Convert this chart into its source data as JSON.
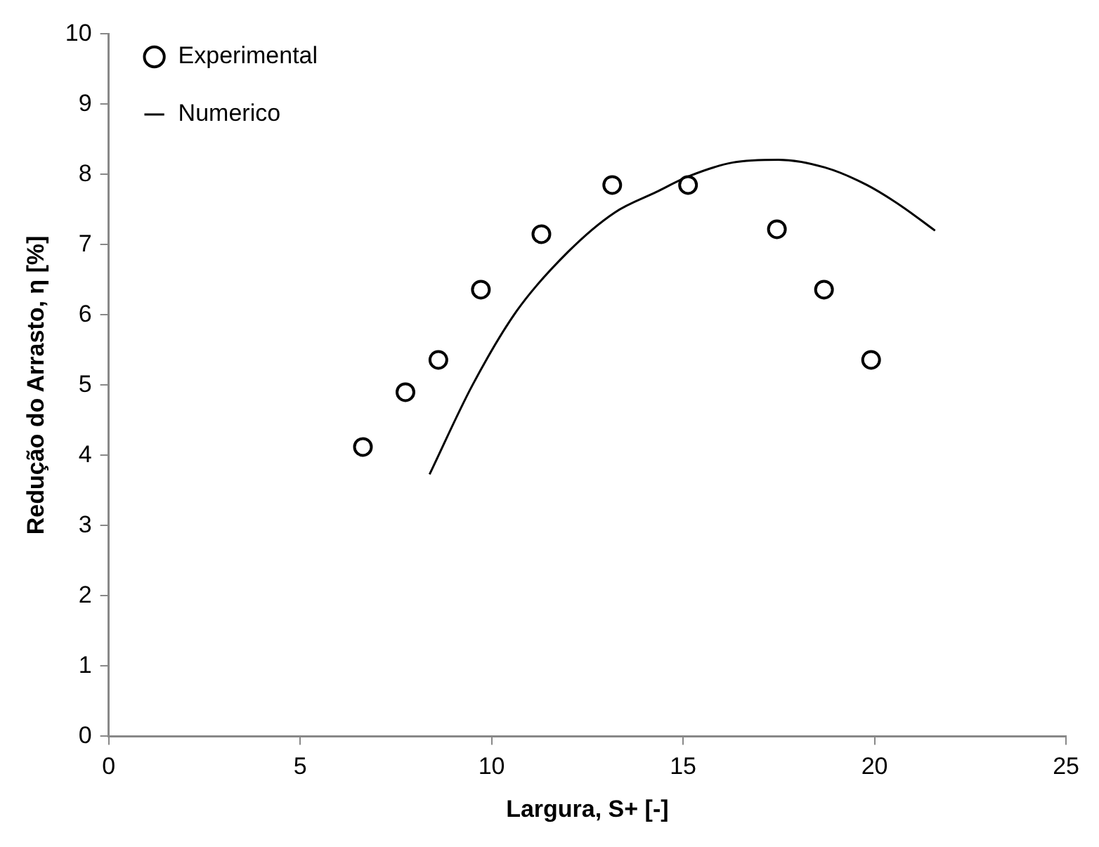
{
  "chart_data": {
    "type": "scatter",
    "xlabel": "Largura, S+ [-]",
    "ylabel": "Redução do Arrasto, η [%]",
    "xlim": [
      0,
      25
    ],
    "xticks": [
      0,
      5,
      10,
      15,
      20,
      25
    ],
    "ylim": [
      0,
      10
    ],
    "yticks": [
      0,
      1,
      2,
      3,
      4,
      5,
      6,
      7,
      8,
      9,
      10
    ],
    "grid": false,
    "legend": "top left",
    "series": [
      {
        "name": "Experimental",
        "marker": "circle",
        "color": "#000000",
        "x": [
          6.64,
          7.75,
          8.61,
          9.72,
          11.3,
          13.15,
          15.13,
          17.45,
          18.68,
          19.91
        ],
        "values": [
          4.12,
          4.9,
          5.36,
          6.36,
          7.15,
          7.85,
          7.85,
          7.22,
          6.36,
          5.36
        ]
      },
      {
        "name": "Numerico",
        "type": "line",
        "marker": "none",
        "line_style": "solid",
        "color": "#000000",
        "x": [
          8.38,
          9.5,
          10.66,
          12,
          13.22,
          14.3,
          15.13,
          16.3,
          17.49,
          18.7,
          19.8,
          20.7,
          21.58
        ],
        "values": [
          3.73,
          5.0,
          6.06,
          6.9,
          7.46,
          7.75,
          7.97,
          8.17,
          8.21,
          8.1,
          7.85,
          7.55,
          7.2
        ]
      }
    ]
  }
}
